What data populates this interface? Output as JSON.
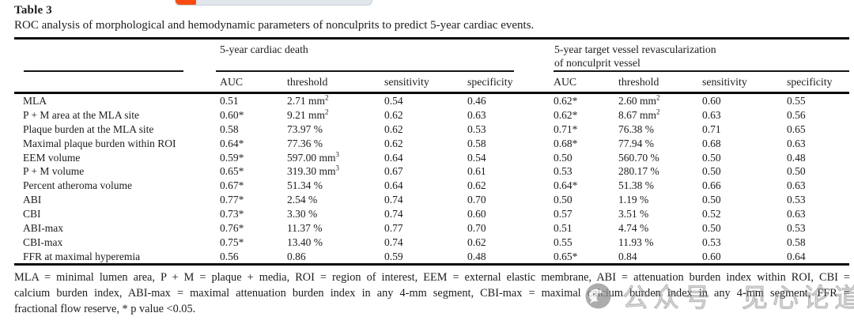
{
  "page": {
    "title": "Table 3",
    "caption": "ROC analysis of morphological and hemodynamic parameters of nonculprits to predict 5-year cardiac events."
  },
  "topbar": {
    "track_color": "#e0e6ec",
    "accent_color": "#f94b12"
  },
  "table": {
    "group1": "5-year cardiac death",
    "group2_line1": "5-year target vessel revascularization",
    "group2_line2": "of nonculprit vessel",
    "sub_headers": [
      "AUC",
      "threshold",
      "sensitivity",
      "specificity",
      "AUC",
      "threshold",
      "sensitivity",
      "specificity"
    ],
    "rows": [
      {
        "label": "MLA",
        "values": [
          "0.51",
          "2.71 mm^2",
          "0.54",
          "0.46",
          "0.62*",
          "2.60 mm^2",
          "0.60",
          "0.55"
        ]
      },
      {
        "label": "P + M area at the MLA site",
        "values": [
          "0.60*",
          "9.21 mm^2",
          "0.62",
          "0.63",
          "0.62*",
          "8.67 mm^2",
          "0.63",
          "0.56"
        ]
      },
      {
        "label": "Plaque burden at the MLA site",
        "values": [
          "0.58",
          "73.97 %",
          "0.62",
          "0.53",
          "0.71*",
          "76.38 %",
          "0.71",
          "0.65"
        ]
      },
      {
        "label": "Maximal plaque burden within ROI",
        "values": [
          "0.64*",
          "77.36 %",
          "0.62",
          "0.58",
          "0.68*",
          "77.94 %",
          "0.68",
          "0.63"
        ]
      },
      {
        "label": "EEM volume",
        "values": [
          "0.59*",
          "597.00 mm^3",
          "0.64",
          "0.54",
          "0.50",
          "560.70 %",
          "0.50",
          "0.48"
        ]
      },
      {
        "label": "P + M volume",
        "values": [
          "0.65*",
          "319.30 mm^3",
          "0.67",
          "0.61",
          "0.53",
          "280.17 %",
          "0.50",
          "0.50"
        ]
      },
      {
        "label": "Percent atheroma volume",
        "values": [
          "0.67*",
          "51.34 %",
          "0.64",
          "0.62",
          "0.64*",
          "51.38 %",
          "0.66",
          "0.63"
        ]
      },
      {
        "label": "ABI",
        "values": [
          "0.77*",
          "2.54 %",
          "0.74",
          "0.70",
          "0.50",
          "1.19 %",
          "0.50",
          "0.53"
        ]
      },
      {
        "label": "CBI",
        "values": [
          "0.73*",
          "3.30 %",
          "0.74",
          "0.60",
          "0.57",
          "3.51 %",
          "0.52",
          "0.63"
        ]
      },
      {
        "label": "ABI-max",
        "values": [
          "0.76*",
          "11.37 %",
          "0.77",
          "0.70",
          "0.51",
          "4.74 %",
          "0.50",
          "0.53"
        ]
      },
      {
        "label": "CBI-max",
        "values": [
          "0.75*",
          "13.40 %",
          "0.74",
          "0.62",
          "0.55",
          "11.93 %",
          "0.53",
          "0.58"
        ]
      },
      {
        "label": "FFR at maximal hyperemia",
        "values": [
          "0.56",
          "0.86",
          "0.59",
          "0.48",
          "0.65*",
          "0.84",
          "0.60",
          "0.64"
        ]
      }
    ]
  },
  "footnote": {
    "lines": [
      "MLA = minimal lumen area, P + M = plaque + media, ROI = region of interest, EEM = external elastic membrane, ABI = attenuation burden index within ROI, CBI =",
      "calcium burden index, ABI-max = maximal attenuation burden index in any 4-mm segment, CBI-max = maximal calcium burden index in any 4-mm segment, FFR =",
      "fractional flow reserve, * p value <0.05."
    ]
  },
  "watermark": {
    "icon": "wechat-icon",
    "text1": "公众号",
    "text2": "见心论道"
  }
}
